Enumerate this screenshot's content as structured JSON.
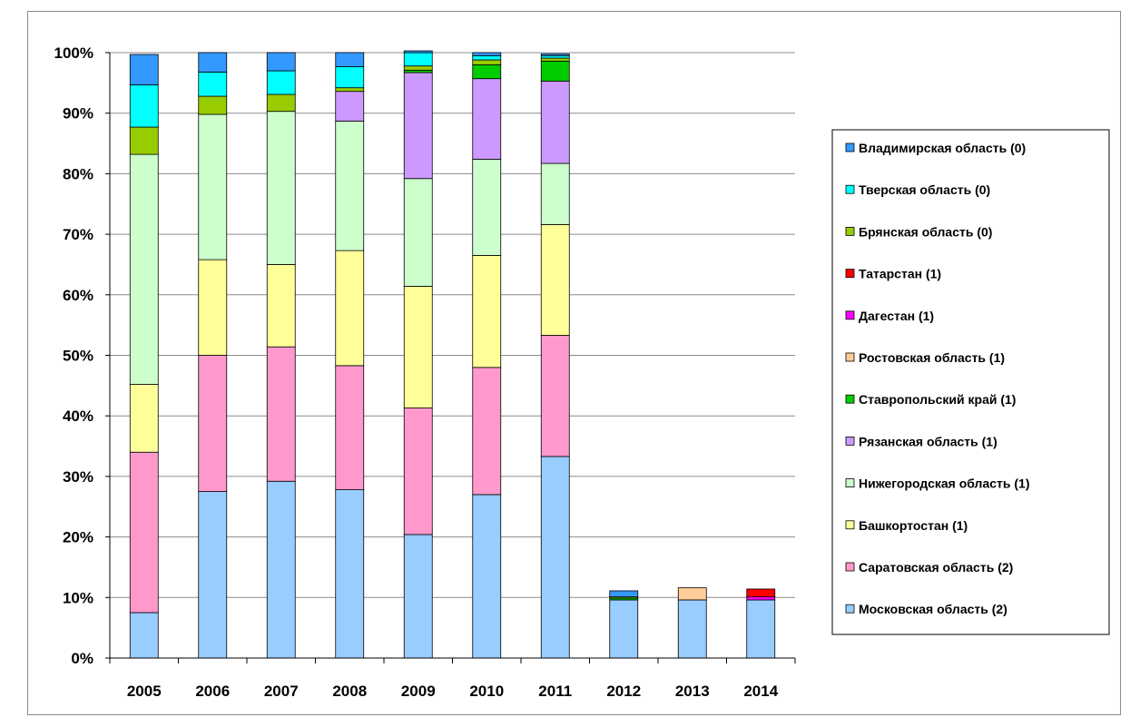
{
  "chart_data": {
    "type": "bar",
    "stacked": true,
    "percent": true,
    "title": "",
    "xlabel": "",
    "ylabel": "",
    "ylim": [
      0,
      100
    ],
    "y_ticks": [
      "0%",
      "10%",
      "20%",
      "30%",
      "40%",
      "50%",
      "60%",
      "70%",
      "80%",
      "90%",
      "100%"
    ],
    "grid": true,
    "legend_position": "right",
    "categories": [
      "2005",
      "2006",
      "2007",
      "2008",
      "2009",
      "2010",
      "2011",
      "2012",
      "2013",
      "2014"
    ],
    "series": [
      {
        "name": "Московская область (2)",
        "color": "#99ccff",
        "values": [
          7.5,
          27.5,
          29.2,
          27.8,
          20.4,
          27.0,
          33.3,
          9.6,
          9.6,
          9.6
        ]
      },
      {
        "name": "Саратовская область (2)",
        "color": "#ff99cc",
        "values": [
          26.5,
          22.5,
          22.2,
          20.5,
          20.9,
          21.0,
          20.0,
          0,
          0,
          0
        ]
      },
      {
        "name": "Башкортостан (1)",
        "color": "#ffff99",
        "values": [
          11.2,
          15.8,
          13.6,
          19.0,
          20.1,
          18.5,
          18.3,
          0,
          0,
          0
        ]
      },
      {
        "name": "Нижегородская область (1)",
        "color": "#ccffcc",
        "values": [
          38.0,
          24.0,
          25.3,
          21.4,
          17.8,
          15.9,
          10.1,
          0,
          0,
          0
        ]
      },
      {
        "name": "Рязанская область (1)",
        "color": "#cc99ff",
        "values": [
          0,
          0,
          0,
          4.9,
          17.5,
          13.3,
          13.6,
          0,
          0,
          0
        ]
      },
      {
        "name": "Ставропольский край (1)",
        "color": "#00cc00",
        "values": [
          0,
          0,
          0,
          0,
          0.4,
          2.3,
          3.3,
          0.3,
          0,
          0
        ]
      },
      {
        "name": "Ростовская область (1)",
        "color": "#ffcc99",
        "values": [
          0,
          0,
          0,
          0,
          0,
          0,
          0,
          0,
          2.0,
          0
        ]
      },
      {
        "name": "Дагестан (1)",
        "color": "#ff00ff",
        "values": [
          0,
          0,
          0,
          0,
          0,
          0,
          0,
          0,
          0,
          0.5
        ]
      },
      {
        "name": "Татарстан (1)",
        "color": "#ff0000",
        "values": [
          0,
          0,
          0,
          0,
          0,
          0,
          0,
          0,
          0,
          1.3
        ]
      },
      {
        "name": "Брянская область (0)",
        "color": "#99cc00",
        "values": [
          4.5,
          3.0,
          2.8,
          0.6,
          0.7,
          0.8,
          0.5,
          0.2,
          0,
          0
        ]
      },
      {
        "name": "Тверская область (0)",
        "color": "#00ffff",
        "values": [
          7.0,
          4.0,
          3.9,
          3.5,
          2.2,
          0.7,
          0.4,
          0,
          0,
          0
        ]
      },
      {
        "name": "Владимирская область (0)",
        "color": "#3399ff",
        "values": [
          5.0,
          3.2,
          3.0,
          2.3,
          0.3,
          0.5,
          0.3,
          1.0,
          0,
          0
        ]
      }
    ]
  }
}
